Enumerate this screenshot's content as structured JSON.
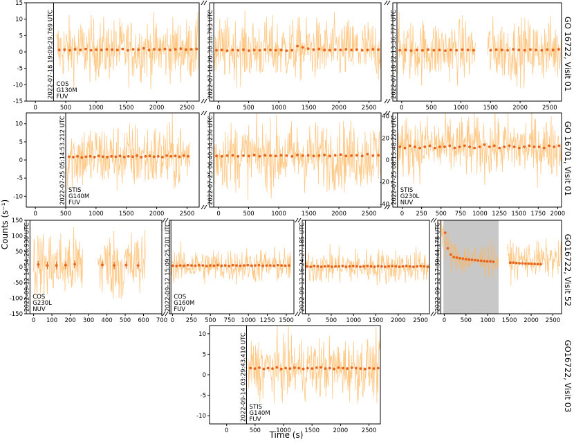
{
  "axis_labels": {
    "x": "Time (s)",
    "y": "Counts (s⁻¹)"
  },
  "row_labels": [
    "GO 16722, Visit 01",
    "GO 16701, Visit 01",
    "GO16722, Visit 52",
    "GO16722, Visit 03"
  ],
  "colors": {
    "noise": "#ffb65c",
    "binned": "#e8641a",
    "flare_shade": "#c8c8c8",
    "axis": "#000000"
  },
  "chart_data": [
    {
      "type": "scatter",
      "row": 0,
      "col": 0,
      "xlim": [
        -150,
        2700
      ],
      "ylim": [
        -15,
        15
      ],
      "xticks": [
        "0",
        "500",
        "1000",
        "1500",
        "2000",
        "2500"
      ],
      "yticks": [
        "-15",
        "-10",
        "-5",
        "0",
        "5",
        "10",
        "15"
      ],
      "obs_start_label": "2022-07-18 19:09:29.769 UTC",
      "obs_start_x": 300,
      "instrument": [
        "COS",
        "G130M",
        "FUV"
      ],
      "data_start": 350,
      "data_end": 2700,
      "gaps": [],
      "noise_amplitude": 5,
      "binned_mean": [
        0.6,
        0.7,
        0.5,
        0.8,
        0.6,
        0.9,
        0.5,
        0.7,
        0.6,
        0.8,
        0.7,
        0.6,
        0.9,
        0.5,
        0.8,
        0.7,
        1.1,
        0.6,
        0.8,
        0.7,
        0.9,
        0.6,
        0.8,
        1.0,
        0.7,
        0.8,
        0.9
      ]
    },
    {
      "type": "scatter",
      "row": 0,
      "col": 1,
      "xlim": [
        -150,
        2700
      ],
      "ylim": [
        -15,
        15
      ],
      "xticks": [
        "0",
        "500",
        "1000",
        "1500",
        "2000",
        "2500"
      ],
      "yticks": [],
      "obs_start_label": "2022-07-18 20:38:18.793 UTC",
      "obs_start_x": -80,
      "instrument": [],
      "data_start": -80,
      "data_end": 2700,
      "gaps": [],
      "noise_amplitude": 5,
      "binned_mean": [
        0.5,
        0.6,
        0.4,
        0.6,
        0.5,
        0.7,
        0.4,
        0.6,
        0.5,
        0.7,
        0.6,
        0.5,
        0.6,
        0.4,
        0.5,
        1.8,
        1.4,
        1.0,
        0.7,
        0.9,
        0.6,
        0.5,
        0.7,
        0.6,
        0.8,
        0.6,
        0.7,
        0.5,
        0.6,
        0.8,
        0.7
      ]
    },
    {
      "type": "scatter",
      "row": 0,
      "col": 2,
      "xlim": [
        -150,
        2700
      ],
      "ylim": [
        -15,
        15
      ],
      "xticks": [
        "0",
        "500",
        "1000",
        "1500",
        "2000",
        "2500"
      ],
      "yticks": [],
      "obs_start_label": "2022-07-18 22:13:36.777 UTC",
      "obs_start_x": -80,
      "instrument": [],
      "data_start": -80,
      "data_end": 2700,
      "gaps": [
        [
          1250,
          1450
        ]
      ],
      "noise_amplitude": 5,
      "binned_mean": [
        0.5,
        0.6,
        0.4,
        0.6,
        0.5,
        0.7,
        0.5,
        0.6,
        0.4,
        0.6,
        0.5,
        0.7,
        0.6,
        0.5,
        0.4,
        0.6,
        0.5,
        0.7,
        0.6,
        0.5,
        0.8,
        0.6,
        0.5,
        0.7,
        0.6,
        0.5,
        0.7,
        0.6,
        0.8
      ]
    },
    {
      "type": "scatter",
      "row": 1,
      "col": 0,
      "xlim": [
        -150,
        2700
      ],
      "ylim": [
        -13,
        13
      ],
      "xticks": [
        "0",
        "500",
        "1000",
        "1500",
        "2000",
        "2500"
      ],
      "yticks": [
        "-10",
        "-5",
        "0",
        "5",
        "10"
      ],
      "obs_start_label": "2022-07-25 05:14:53.212 UTC",
      "obs_start_x": 500,
      "instrument": [
        "STIS",
        "G140M",
        "FUV"
      ],
      "data_start": 520,
      "data_end": 2550,
      "gaps": [],
      "noise_amplitude": 5,
      "binned_mean": [
        0.9,
        0.8,
        1.0,
        0.7,
        0.9,
        1.0,
        0.8,
        1.1,
        0.9,
        0.8,
        1.0,
        0.9,
        1.1,
        0.8,
        1.0,
        0.9,
        1.2,
        0.8,
        1.0,
        1.1,
        0.9,
        1.0,
        0.8,
        1.2,
        1.0,
        1.1,
        0.9,
        1.2,
        1.0
      ]
    },
    {
      "type": "scatter",
      "row": 1,
      "col": 1,
      "xlim": [
        -150,
        2700
      ],
      "ylim": [
        -13,
        13
      ],
      "xticks": [
        "0",
        "500",
        "1000",
        "1500",
        "2000",
        "2500"
      ],
      "yticks": [],
      "obs_start_label": "2022-07-25 06:40:34.236 UTC",
      "obs_start_x": -80,
      "instrument": [],
      "data_start": -80,
      "data_end": 2700,
      "gaps": [],
      "noise_amplitude": 5,
      "binned_mean": [
        1.1,
        1.0,
        1.2,
        1.3,
        1.0,
        1.2,
        1.1,
        1.4,
        1.0,
        1.3,
        1.2,
        1.1,
        1.3,
        1.2,
        1.0,
        1.4,
        1.2,
        1.3,
        1.1,
        1.2,
        1.4,
        1.1,
        1.3,
        1.5,
        1.1,
        1.2,
        1.3,
        1.1,
        1.6,
        1.2,
        1.3
      ]
    },
    {
      "type": "scatter",
      "row": 1,
      "col": 2,
      "xlim": [
        -120,
        2050
      ],
      "ylim": [
        -43,
        43
      ],
      "xticks": [
        "0",
        "250",
        "500",
        "750",
        "1000",
        "1250",
        "1500",
        "1750",
        "2000"
      ],
      "yticks": [
        "-40",
        "-20",
        "0",
        "20",
        "40"
      ],
      "obs_start_label": "2022-07-25 08:15:48.220 UTC",
      "obs_start_x": -60,
      "instrument": [
        "STIS",
        "G230L",
        "NUV"
      ],
      "data_start": -60,
      "data_end": 2050,
      "gaps": [],
      "noise_amplitude": 15,
      "binned_mean": [
        12,
        11,
        13,
        12,
        11,
        12,
        13,
        11,
        12,
        12,
        13,
        11,
        12,
        13,
        12,
        11,
        12,
        14,
        12,
        13,
        11,
        12,
        13,
        12,
        11,
        12,
        13,
        12,
        12,
        11,
        13,
        12,
        13
      ]
    },
    {
      "type": "scatter",
      "row": 2,
      "col": 0,
      "xlim": [
        -40,
        700
      ],
      "ylim": [
        -150,
        150
      ],
      "xticks": [
        "0",
        "100",
        "200",
        "300",
        "400",
        "500",
        "600",
        "700"
      ],
      "yticks": [
        "-150",
        "-100",
        "-50",
        "0",
        "50",
        "100",
        "150"
      ],
      "obs_start_label": "2022-09-12 14:54:26.930 UTC",
      "obs_start_x": -20,
      "instrument": [
        "COS",
        "G230L",
        "NUV"
      ],
      "data_start": 0,
      "data_end": 610,
      "gaps": [
        [
          270,
          350
        ]
      ],
      "noise_amplitude": 60,
      "binned_mean": [
        8,
        5,
        5,
        6,
        9,
        0,
        0,
        7,
        5,
        6,
        5
      ],
      "binned_x": [
        25,
        75,
        125,
        175,
        225,
        275,
        325,
        375,
        440,
        505,
        570
      ],
      "binned_err": [
        12,
        12,
        12,
        12,
        12,
        0,
        0,
        12,
        12,
        12,
        12
      ]
    },
    {
      "type": "scatter",
      "row": 2,
      "col": 1,
      "xlim": [
        -40,
        1600
      ],
      "ylim": [
        -150,
        150
      ],
      "xticks": [
        "0",
        "250",
        "500",
        "750",
        "1000",
        "1250",
        "1500"
      ],
      "yticks": [],
      "obs_start_label": "2022-09-12 15:09:25.201 UTC",
      "obs_start_x": -20,
      "instrument": [
        "COS",
        "G160M",
        "FUV"
      ],
      "data_start": -20,
      "data_end": 1560,
      "gaps": [],
      "noise_amplitude": 30,
      "binned_mean": [
        4,
        3,
        5,
        4,
        6,
        5,
        4,
        6,
        5,
        3,
        5,
        4,
        6,
        4,
        5,
        3,
        6,
        5,
        4,
        5,
        6,
        4,
        5,
        6,
        4,
        5,
        5,
        4,
        6,
        5,
        4,
        5
      ]
    },
    {
      "type": "scatter",
      "row": 2,
      "col": 2,
      "xlim": [
        -150,
        2700
      ],
      "ylim": [
        -150,
        150
      ],
      "xticks": [
        "0",
        "500",
        "1000",
        "1500",
        "2000",
        "2500"
      ],
      "yticks": [],
      "obs_start_label": "2022-09-12 16:24:27.185 UTC",
      "obs_start_x": -80,
      "instrument": [],
      "data_start": -80,
      "data_end": 2700,
      "gaps": [],
      "noise_amplitude": 30,
      "binned_mean": [
        2,
        1,
        3,
        2,
        1,
        2,
        3,
        1,
        2,
        2,
        3,
        1,
        2,
        3,
        2,
        1,
        2,
        3,
        2,
        1,
        3,
        2,
        1,
        2,
        3,
        2,
        1,
        2,
        3,
        2,
        1,
        2,
        3,
        2,
        1
      ]
    },
    {
      "type": "scatter",
      "row": 2,
      "col": 3,
      "xlim": [
        -150,
        2700
      ],
      "ylim": [
        -150,
        150
      ],
      "xticks": [
        "0",
        "500",
        "1000",
        "1500",
        "2000",
        "2500"
      ],
      "yticks": [],
      "obs_start_label": "2022-09-12 17:59:44.178 UTC",
      "obs_start_x": -80,
      "instrument": [],
      "data_start": -80,
      "data_end": 2700,
      "gaps": [
        [
          1250,
          1450
        ]
      ],
      "shade": [
        -20,
        1250
      ],
      "noise_amplitude": 30,
      "binned_mean": [
        110,
        60,
        40,
        32,
        30,
        28,
        27,
        25,
        24,
        23,
        22,
        21,
        20,
        19,
        18,
        18,
        17,
        0,
        15,
        14,
        14,
        13,
        12,
        12,
        11,
        11,
        10,
        10,
        9,
        9
      ],
      "binned_x": [
        20,
        80,
        150,
        220,
        290,
        360,
        430,
        500,
        570,
        640,
        710,
        780,
        850,
        920,
        990,
        1060,
        1130,
        1350,
        1450,
        1520,
        1590,
        1660,
        1730,
        1800,
        1870,
        1940,
        2010,
        2080,
        2150,
        2220
      ]
    },
    {
      "type": "scatter",
      "row": 3,
      "col": 0,
      "xlim": [
        -300,
        2700
      ],
      "ylim": [
        -12,
        12
      ],
      "xticks": [
        "0",
        "500",
        "1000",
        "1500",
        "2000",
        "2500"
      ],
      "yticks": [
        "-10",
        "-5",
        "0",
        "5",
        "10"
      ],
      "obs_start_label": "2022-09-14 03:29:43.410 UTC",
      "obs_start_x": 350,
      "instrument": [
        "STIS",
        "G140M",
        "FUV"
      ],
      "data_start": 380,
      "data_end": 2700,
      "gaps": [],
      "noise_amplitude": 4,
      "binned_mean": [
        1.6,
        1.5,
        1.7,
        1.4,
        1.6,
        1.5,
        1.8,
        1.4,
        1.6,
        1.5,
        1.7,
        1.6,
        1.4,
        1.6,
        1.5,
        1.7,
        1.8,
        1.5,
        1.6,
        1.4,
        1.7,
        1.6,
        1.5,
        1.7,
        1.6,
        1.5,
        1.4,
        1.6,
        1.5,
        1.6
      ]
    }
  ]
}
